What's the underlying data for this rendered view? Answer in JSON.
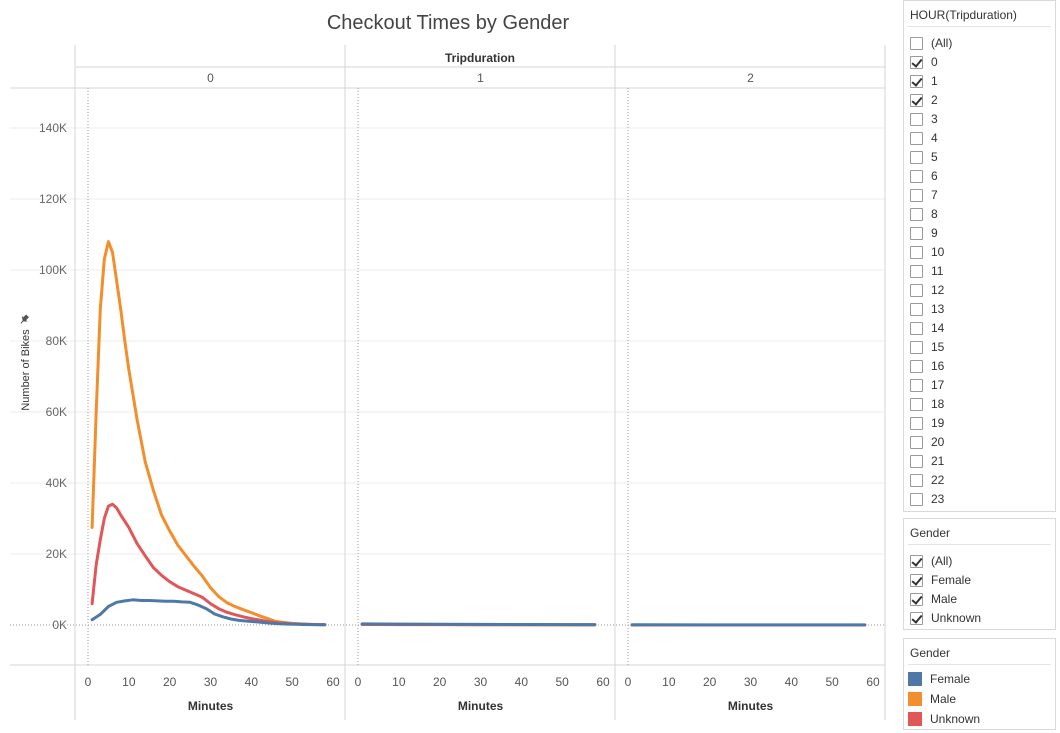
{
  "chart_data": {
    "type": "line",
    "title": "Checkout Times by Gender",
    "facet_label": "Tripduration",
    "facets": [
      "0",
      "1",
      "2"
    ],
    "xlabel": "Minutes",
    "ylabel": "Number of Bikes",
    "xlim": [
      0,
      60
    ],
    "ylim": [
      -20000,
      150000
    ],
    "x_ticks": [
      0,
      10,
      20,
      30,
      40,
      50,
      60
    ],
    "y_ticks": [
      {
        "value": 0,
        "label": "0K"
      },
      {
        "value": 20000,
        "label": "20K"
      },
      {
        "value": 40000,
        "label": "40K"
      },
      {
        "value": 60000,
        "label": "60K"
      },
      {
        "value": 80000,
        "label": "80K"
      },
      {
        "value": 100000,
        "label": "100K"
      },
      {
        "value": 120000,
        "label": "120K"
      },
      {
        "value": 140000,
        "label": "140K"
      }
    ],
    "grid": "horizontal",
    "legend_position": "right",
    "series": [
      {
        "name": "Male",
        "color": "#F28E2B",
        "panels": [
          [
            [
              1,
              27500
            ],
            [
              2,
              60000
            ],
            [
              3,
              89000
            ],
            [
              4,
              103000
            ],
            [
              5,
              108000
            ],
            [
              6,
              105000
            ],
            [
              7,
              97000
            ],
            [
              8,
              89000
            ],
            [
              9,
              80000
            ],
            [
              10,
              72000
            ],
            [
              12,
              58000
            ],
            [
              14,
              46000
            ],
            [
              16,
              38000
            ],
            [
              18,
              31000
            ],
            [
              20,
              26500
            ],
            [
              22,
              22500
            ],
            [
              24,
              19500
            ],
            [
              26,
              16500
            ],
            [
              28,
              13800
            ],
            [
              30,
              10500
            ],
            [
              32,
              8000
            ],
            [
              34,
              6300
            ],
            [
              36,
              5200
            ],
            [
              38,
              4300
            ],
            [
              40,
              3500
            ],
            [
              42,
              2600
            ],
            [
              44,
              1800
            ],
            [
              46,
              1000
            ],
            [
              48,
              700
            ],
            [
              50,
              450
            ],
            [
              52,
              300
            ],
            [
              54,
              200
            ],
            [
              56,
              150
            ],
            [
              58,
              100
            ]
          ],
          [
            [
              1,
              250
            ],
            [
              10,
              200
            ],
            [
              20,
              150
            ],
            [
              30,
              100
            ],
            [
              40,
              80
            ],
            [
              50,
              60
            ],
            [
              58,
              50
            ]
          ],
          [
            [
              1,
              0
            ],
            [
              58,
              0
            ]
          ]
        ]
      },
      {
        "name": "Unknown",
        "color": "#E15759",
        "panels": [
          [
            [
              1,
              6000
            ],
            [
              2,
              17000
            ],
            [
              3,
              24000
            ],
            [
              4,
              30000
            ],
            [
              5,
              33500
            ],
            [
              6,
              34000
            ],
            [
              7,
              33000
            ],
            [
              8,
              31000
            ],
            [
              10,
              27500
            ],
            [
              12,
              23000
            ],
            [
              14,
              19500
            ],
            [
              16,
              16200
            ],
            [
              18,
              14000
            ],
            [
              20,
              12200
            ],
            [
              22,
              10800
            ],
            [
              24,
              9800
            ],
            [
              26,
              8800
            ],
            [
              28,
              7800
            ],
            [
              30,
              6000
            ],
            [
              32,
              4600
            ],
            [
              34,
              3600
            ],
            [
              36,
              2900
            ],
            [
              38,
              2300
            ],
            [
              40,
              1800
            ],
            [
              42,
              1400
            ],
            [
              44,
              1000
            ],
            [
              46,
              700
            ],
            [
              48,
              500
            ],
            [
              50,
              350
            ],
            [
              52,
              250
            ],
            [
              54,
              180
            ],
            [
              56,
              120
            ],
            [
              58,
              80
            ]
          ],
          [
            [
              1,
              150
            ],
            [
              10,
              120
            ],
            [
              20,
              100
            ],
            [
              30,
              80
            ],
            [
              40,
              60
            ],
            [
              50,
              50
            ],
            [
              58,
              40
            ]
          ],
          [
            [
              1,
              0
            ],
            [
              58,
              0
            ]
          ]
        ]
      },
      {
        "name": "Female",
        "color": "#4E79A7",
        "panels": [
          [
            [
              1,
              1500
            ],
            [
              3,
              3000
            ],
            [
              5,
              5200
            ],
            [
              7,
              6400
            ],
            [
              9,
              6800
            ],
            [
              11,
              7100
            ],
            [
              13,
              6900
            ],
            [
              15,
              6900
            ],
            [
              17,
              6800
            ],
            [
              19,
              6700
            ],
            [
              21,
              6700
            ],
            [
              23,
              6500
            ],
            [
              25,
              6400
            ],
            [
              27,
              5600
            ],
            [
              29,
              4600
            ],
            [
              31,
              3100
            ],
            [
              33,
              2300
            ],
            [
              35,
              1700
            ],
            [
              37,
              1300
            ],
            [
              39,
              1100
            ],
            [
              41,
              900
            ],
            [
              43,
              700
            ],
            [
              45,
              500
            ],
            [
              47,
              350
            ],
            [
              49,
              250
            ],
            [
              51,
              200
            ],
            [
              53,
              150
            ],
            [
              55,
              100
            ],
            [
              58,
              80
            ]
          ],
          [
            [
              1,
              300
            ],
            [
              10,
              250
            ],
            [
              20,
              200
            ],
            [
              30,
              180
            ],
            [
              40,
              150
            ],
            [
              50,
              120
            ],
            [
              58,
              100
            ]
          ],
          [
            [
              1,
              50
            ],
            [
              20,
              40
            ],
            [
              40,
              30
            ],
            [
              58,
              30
            ]
          ]
        ]
      }
    ]
  },
  "filters": {
    "hour": {
      "title": "HOUR(Tripduration)",
      "options": [
        {
          "label": "(All)",
          "checked": false
        },
        {
          "label": "0",
          "checked": true
        },
        {
          "label": "1",
          "checked": true
        },
        {
          "label": "2",
          "checked": true
        },
        {
          "label": "3",
          "checked": false
        },
        {
          "label": "4",
          "checked": false
        },
        {
          "label": "5",
          "checked": false
        },
        {
          "label": "6",
          "checked": false
        },
        {
          "label": "7",
          "checked": false
        },
        {
          "label": "8",
          "checked": false
        },
        {
          "label": "9",
          "checked": false
        },
        {
          "label": "10",
          "checked": false
        },
        {
          "label": "11",
          "checked": false
        },
        {
          "label": "12",
          "checked": false
        },
        {
          "label": "13",
          "checked": false
        },
        {
          "label": "14",
          "checked": false
        },
        {
          "label": "15",
          "checked": false
        },
        {
          "label": "16",
          "checked": false
        },
        {
          "label": "17",
          "checked": false
        },
        {
          "label": "18",
          "checked": false
        },
        {
          "label": "19",
          "checked": false
        },
        {
          "label": "20",
          "checked": false
        },
        {
          "label": "21",
          "checked": false
        },
        {
          "label": "22",
          "checked": false
        },
        {
          "label": "23",
          "checked": false
        }
      ]
    },
    "gender": {
      "title": "Gender",
      "options": [
        {
          "label": "(All)",
          "checked": true
        },
        {
          "label": "Female",
          "checked": true
        },
        {
          "label": "Male",
          "checked": true
        },
        {
          "label": "Unknown",
          "checked": true
        }
      ]
    }
  },
  "legend": {
    "title": "Gender",
    "items": [
      {
        "label": "Female",
        "color": "#4E79A7"
      },
      {
        "label": "Male",
        "color": "#F28E2B"
      },
      {
        "label": "Unknown",
        "color": "#E15759"
      }
    ]
  }
}
